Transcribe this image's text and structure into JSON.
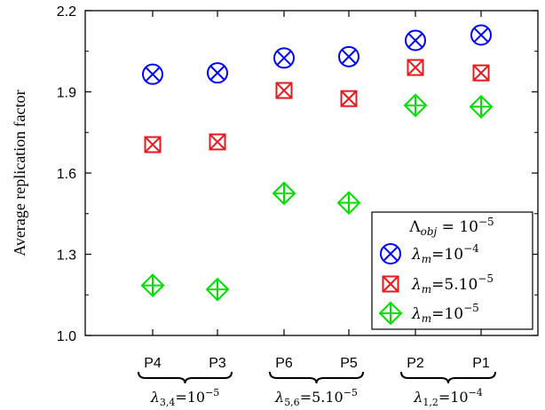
{
  "chart_data": {
    "type": "scatter",
    "title": "",
    "xlabel": "",
    "ylabel": "Average replication factor",
    "categories": [
      "P4",
      "P3",
      "P6",
      "P5",
      "P2",
      "P1"
    ],
    "ylim": [
      1.0,
      2.2
    ],
    "yticks": [
      "1.0",
      "1.3",
      "1.6",
      "1.9",
      "2.2"
    ],
    "grid": false,
    "legend_position": "bottom-right",
    "legend_header": "Λobj = 10^-5",
    "series": [
      {
        "name": "λm = 10^-4",
        "marker": "circle-x",
        "color": "#0000ff",
        "values": [
          1.965,
          1.97,
          2.025,
          2.03,
          2.09,
          2.11
        ]
      },
      {
        "name": "λm = 5.10^-5",
        "marker": "square-x",
        "color": "#e8191c",
        "values": [
          1.705,
          1.715,
          1.905,
          1.875,
          1.99,
          1.97
        ]
      },
      {
        "name": "λm = 10^-5",
        "marker": "diamond-plus",
        "color": "#00e000",
        "values": [
          1.185,
          1.17,
          1.525,
          1.49,
          1.85,
          1.845
        ]
      }
    ],
    "groups": [
      {
        "members": [
          "P4",
          "P3"
        ],
        "label_sym": "λ",
        "label_sub": "3,4",
        "label_eq": "=",
        "label_val": "10",
        "label_exp": "−5"
      },
      {
        "members": [
          "P6",
          "P5"
        ],
        "label_sym": "λ",
        "label_sub": "5,6",
        "label_eq": "=",
        "label_val": "5.10",
        "label_exp": "−5"
      },
      {
        "members": [
          "P2",
          "P1"
        ],
        "label_sym": "λ",
        "label_sub": "1,2",
        "label_eq": "=",
        "label_val": "10",
        "label_exp": "−4"
      }
    ],
    "legend": {
      "header_sym": "Λ",
      "header_sub": "obj",
      "header_eq": " = ",
      "header_val": "10",
      "header_exp": "−5",
      "entries": [
        {
          "sym": "λ",
          "sub": "m",
          "eq": "=",
          "val": "10",
          "exp": "−4"
        },
        {
          "sym": "λ",
          "sub": "m",
          "eq": "=",
          "val": "5.10",
          "exp": "−5"
        },
        {
          "sym": "λ",
          "sub": "m",
          "eq": "=",
          "val": "10",
          "exp": "−5"
        }
      ]
    }
  }
}
